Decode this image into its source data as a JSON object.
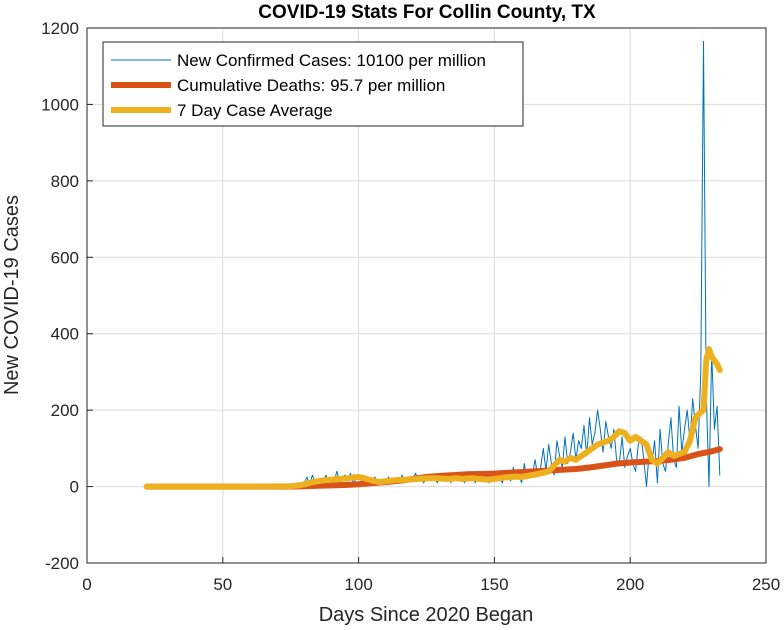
{
  "chart_data": {
    "type": "line",
    "title": "COVID-19 Stats For Collin County, TX",
    "xlabel": "Days Since 2020 Began",
    "ylabel": "New COVID-19 Cases",
    "xlim": [
      0,
      250
    ],
    "ylim": [
      -200,
      1200
    ],
    "xticks": [
      0,
      50,
      100,
      150,
      200,
      250
    ],
    "yticks": [
      -200,
      0,
      200,
      400,
      600,
      800,
      1000,
      1200
    ],
    "grid": true,
    "legend_position": "top-left",
    "series": [
      {
        "name": "New Confirmed Cases: 10100 per million",
        "color": "#0072BD",
        "line_width": "thin",
        "x": [
          22,
          30,
          40,
          50,
          60,
          70,
          74,
          76,
          78,
          80,
          81,
          82,
          83,
          84,
          85,
          86,
          87,
          88,
          89,
          90,
          91,
          92,
          93,
          94,
          95,
          96,
          97,
          98,
          99,
          100,
          101,
          102,
          103,
          104,
          105,
          106,
          107,
          108,
          109,
          110,
          111,
          112,
          113,
          114,
          115,
          116,
          117,
          118,
          119,
          120,
          121,
          122,
          123,
          124,
          125,
          126,
          127,
          128,
          129,
          130,
          131,
          132,
          133,
          134,
          135,
          136,
          137,
          138,
          139,
          140,
          141,
          142,
          143,
          144,
          145,
          146,
          147,
          148,
          149,
          150,
          151,
          152,
          153,
          154,
          155,
          156,
          157,
          158,
          159,
          160,
          161,
          162,
          163,
          164,
          165,
          166,
          167,
          168,
          169,
          170,
          171,
          172,
          173,
          174,
          175,
          176,
          177,
          178,
          179,
          180,
          181,
          182,
          183,
          184,
          185,
          186,
          187,
          188,
          189,
          190,
          191,
          192,
          193,
          194,
          195,
          196,
          197,
          198,
          199,
          200,
          201,
          202,
          203,
          204,
          205,
          206,
          207,
          208,
          209,
          210,
          211,
          212,
          213,
          214,
          215,
          216,
          217,
          218,
          219,
          220,
          221,
          222,
          223,
          224,
          225,
          226,
          227,
          228,
          229,
          230,
          231,
          232,
          233
        ],
        "y": [
          0,
          0,
          0,
          0,
          0,
          0,
          2,
          5,
          8,
          10,
          25,
          5,
          30,
          10,
          20,
          5,
          15,
          30,
          10,
          20,
          15,
          40,
          10,
          25,
          30,
          15,
          35,
          10,
          20,
          30,
          15,
          10,
          5,
          20,
          10,
          25,
          5,
          15,
          20,
          10,
          25,
          15,
          20,
          10,
          15,
          30,
          10,
          25,
          15,
          20,
          35,
          15,
          20,
          10,
          25,
          30,
          15,
          20,
          10,
          25,
          20,
          15,
          30,
          10,
          35,
          20,
          15,
          25,
          10,
          30,
          15,
          20,
          10,
          40,
          15,
          25,
          20,
          10,
          35,
          15,
          30,
          20,
          10,
          40,
          25,
          15,
          50,
          20,
          35,
          10,
          60,
          20,
          45,
          30,
          70,
          25,
          50,
          100,
          40,
          110,
          60,
          30,
          120,
          80,
          50,
          130,
          60,
          90,
          140,
          70,
          120,
          100,
          160,
          80,
          180,
          110,
          140,
          200,
          150,
          90,
          170,
          130,
          100,
          150,
          70,
          60,
          130,
          50,
          80,
          100,
          60,
          40,
          110,
          130,
          70,
          0,
          90,
          60,
          120,
          10,
          150,
          60,
          40,
          110,
          180,
          70,
          50,
          210,
          90,
          150,
          200,
          120,
          230,
          160,
          100,
          300,
          1165,
          250,
          0,
          350,
          150,
          210,
          30
        ],
        "description_note": ""
      },
      {
        "name": "Cumulative Deaths: 95.7 per million",
        "color": "#D95319",
        "line_width": "thick",
        "x": [
          22,
          60,
          75,
          80,
          85,
          90,
          95,
          100,
          105,
          110,
          115,
          120,
          125,
          130,
          135,
          140,
          145,
          150,
          155,
          160,
          165,
          170,
          175,
          180,
          185,
          190,
          195,
          200,
          205,
          210,
          215,
          220,
          225,
          230,
          233
        ],
        "y": [
          0,
          0,
          0,
          1,
          2,
          3,
          4,
          6,
          9,
          12,
          15,
          20,
          25,
          28,
          30,
          32,
          33,
          34,
          36,
          38,
          40,
          42,
          44,
          46,
          50,
          55,
          60,
          63,
          65,
          67,
          70,
          75,
          85,
          92,
          98
        ]
      },
      {
        "name": "7 Day Case Average",
        "color": "#EDB120",
        "line_width": "thick",
        "x": [
          22,
          60,
          75,
          78,
          80,
          82,
          84,
          86,
          88,
          90,
          92,
          94,
          96,
          98,
          100,
          102,
          104,
          106,
          108,
          110,
          112,
          114,
          116,
          118,
          120,
          122,
          124,
          126,
          128,
          130,
          132,
          134,
          136,
          138,
          140,
          142,
          144,
          146,
          148,
          150,
          152,
          154,
          156,
          158,
          160,
          162,
          164,
          166,
          168,
          170,
          172,
          174,
          176,
          178,
          180,
          182,
          184,
          186,
          188,
          190,
          192,
          194,
          196,
          198,
          200,
          202,
          204,
          206,
          208,
          210,
          212,
          214,
          216,
          218,
          220,
          222,
          224,
          226,
          227,
          228,
          229,
          230,
          231,
          232,
          233
        ],
        "y": [
          0,
          0,
          1,
          3,
          6,
          10,
          13,
          15,
          17,
          18,
          20,
          20,
          22,
          24,
          25,
          22,
          18,
          14,
          12,
          14,
          16,
          17,
          18,
          18,
          19,
          20,
          21,
          22,
          22,
          21,
          20,
          20,
          22,
          20,
          21,
          22,
          20,
          19,
          18,
          20,
          22,
          24,
          25,
          26,
          25,
          28,
          30,
          33,
          36,
          40,
          55,
          70,
          65,
          75,
          70,
          80,
          90,
          100,
          110,
          115,
          120,
          130,
          145,
          140,
          120,
          130,
          120,
          110,
          70,
          60,
          75,
          90,
          80,
          85,
          90,
          120,
          180,
          195,
          200,
          330,
          360,
          340,
          330,
          320,
          305
        ]
      }
    ]
  }
}
